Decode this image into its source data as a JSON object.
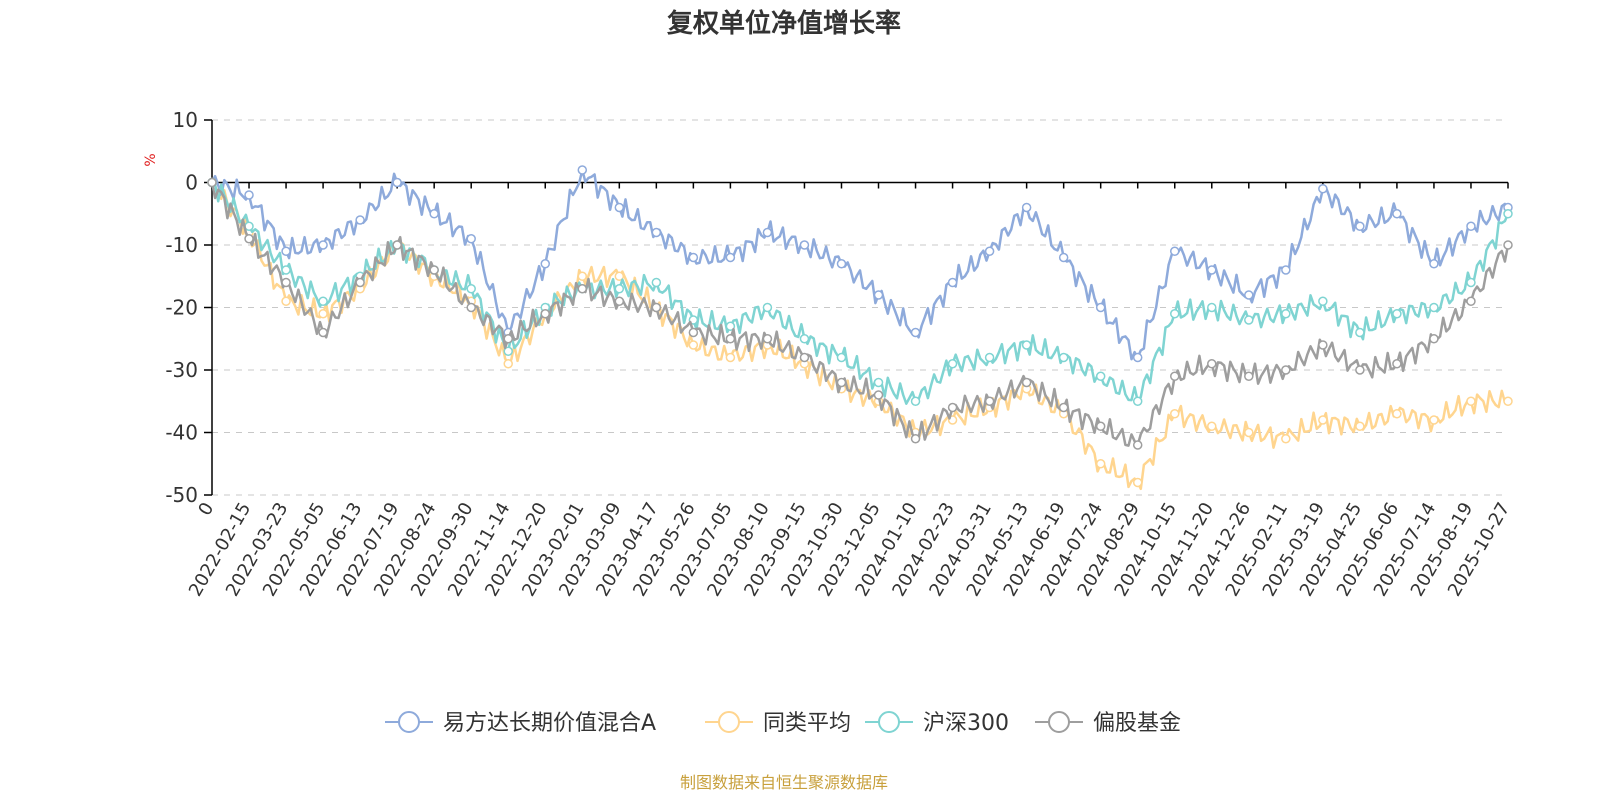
{
  "chart_data": {
    "type": "line",
    "title": "复权单位净值增长率",
    "ylabel": "%",
    "xlabel": "",
    "ylim": [
      -50,
      10
    ],
    "yticks": [
      10,
      0,
      -10,
      -20,
      -30,
      -40,
      -50
    ],
    "grid": true,
    "legend_position": "bottom",
    "source_note": "制图数据来自恒生聚源数据库",
    "categories": [
      "0",
      "2022-02-15",
      "2022-03-23",
      "2022-05-05",
      "2022-06-13",
      "2022-07-19",
      "2022-08-24",
      "2022-09-30",
      "2022-11-14",
      "2022-12-20",
      "2023-02-01",
      "2023-03-09",
      "2023-04-17",
      "2023-05-26",
      "2023-07-05",
      "2023-08-10",
      "2023-09-15",
      "2023-10-30",
      "2023-12-05",
      "2024-01-10",
      "2024-02-23",
      "2024-03-31",
      "2024-05-13",
      "2024-06-19",
      "2024-07-24",
      "2024-08-29",
      "2024-10-15",
      "2024-11-20",
      "2024-12-26",
      "2025-02-11",
      "2025-03-19",
      "2025-04-25",
      "2025-06-06",
      "2025-07-14",
      "2025-08-19",
      "2025-10-27"
    ],
    "series": [
      {
        "name": "易方达长期价值混合A",
        "color": "#8eaadb",
        "values": [
          0,
          -2,
          -11,
          -10,
          -6,
          0,
          -5,
          -9,
          -24,
          -13,
          2,
          -4,
          -8,
          -12,
          -12,
          -8,
          -10,
          -13,
          -18,
          -24,
          -16,
          -11,
          -4,
          -12,
          -20,
          -28,
          -11,
          -14,
          -18,
          -14,
          -1,
          -7,
          -5,
          -13,
          -7,
          -4
        ]
      },
      {
        "name": "同类平均",
        "color": "#ffd58f",
        "values": [
          0,
          -8,
          -19,
          -21,
          -17,
          -10,
          -15,
          -19,
          -29,
          -21,
          -15,
          -15,
          -20,
          -26,
          -28,
          -26,
          -29,
          -33,
          -35,
          -40,
          -38,
          -36,
          -33,
          -37,
          -45,
          -48,
          -37,
          -39,
          -40,
          -41,
          -38,
          -39,
          -37,
          -38,
          -35,
          -35
        ]
      },
      {
        "name": "沪深300",
        "color": "#7fd4d2",
        "values": [
          0,
          -7,
          -14,
          -19,
          -15,
          -10,
          -14,
          -17,
          -27,
          -20,
          -17,
          -17,
          -16,
          -22,
          -23,
          -20,
          -25,
          -28,
          -32,
          -35,
          -29,
          -28,
          -26,
          -28,
          -31,
          -35,
          -21,
          -20,
          -22,
          -21,
          -19,
          -24,
          -21,
          -20,
          -16,
          -5
        ]
      },
      {
        "name": "偏股基金",
        "color": "#9e9e9e",
        "values": [
          0,
          -9,
          -16,
          -24,
          -16,
          -10,
          -14,
          -20,
          -25,
          -21,
          -17,
          -19,
          -20,
          -24,
          -25,
          -25,
          -28,
          -32,
          -34,
          -41,
          -36,
          -35,
          -32,
          -36,
          -39,
          -42,
          -31,
          -29,
          -31,
          -30,
          -26,
          -30,
          -29,
          -25,
          -19,
          -10
        ]
      }
    ]
  }
}
